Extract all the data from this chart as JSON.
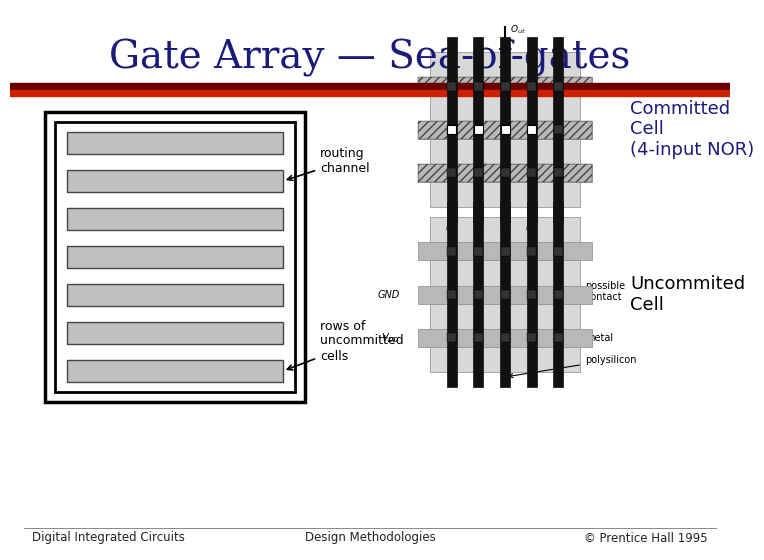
{
  "title": "Gate Array — Sea-of-gates",
  "title_color": "#1a1a7a",
  "title_fontsize": 28,
  "title_font": "serif",
  "divider_dark": "#6b0000",
  "divider_bright": "#cc2200",
  "bg_color": "#ffffff",
  "footer_left": "Digital Integrated Circuits",
  "footer_mid": "Design Methodologies",
  "footer_right": "© Prentice Hall 1995",
  "footer_color": "#222222",
  "footer_fontsize": 8.5,
  "label_uncommited": "Uncommited\nCell",
  "label_committed": "Committed\nCell\n(4-input NOR)",
  "label_rows": "rows of\nuncommitted\ncells",
  "label_routing": "routing\nchannel",
  "committed_color": "#1a1a7a"
}
